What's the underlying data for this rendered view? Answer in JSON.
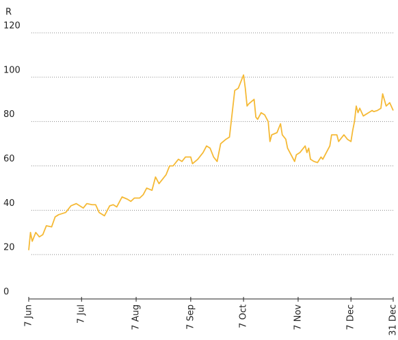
{
  "chart_data": {
    "type": "line",
    "ylabel": "R",
    "x": [
      "7 Jun",
      "8 Jun",
      "9 Jun",
      "11 Jun",
      "13 Jun",
      "15 Jun",
      "17 Jun",
      "20 Jun",
      "22 Jun",
      "24 Jun",
      "28 Jun",
      "30 Jun",
      "1 Jul",
      "4 Jul",
      "6 Jul",
      "8 Jul",
      "10 Jul",
      "13 Jul",
      "15 Jul",
      "17 Jul",
      "20 Jul",
      "23 Jul",
      "25 Jul",
      "27 Jul",
      "30 Jul",
      "2 Aug",
      "4 Aug",
      "6 Aug",
      "9 Aug",
      "11 Aug",
      "13 Aug",
      "16 Aug",
      "18 Aug",
      "20 Aug",
      "24 Aug",
      "26 Aug",
      "28 Aug",
      "29 Aug",
      "30 Aug",
      "31 Aug",
      "2 Sep",
      "4 Sep",
      "7 Sep",
      "8 Sep",
      "11 Sep",
      "14 Sep",
      "16 Sep",
      "18 Sep",
      "20 Sep",
      "22 Sep",
      "24 Sep",
      "27 Sep",
      "29 Sep",
      "1 Oct",
      "2 Oct",
      "4 Oct",
      "5 Oct",
      "7 Oct",
      "8 Oct",
      "9 Oct",
      "10 Oct",
      "13 Oct",
      "14 Oct",
      "15 Oct",
      "17 Oct",
      "19 Oct",
      "21 Oct",
      "22 Oct",
      "23 Oct",
      "26 Oct",
      "28 Oct",
      "29 Oct",
      "31 Oct",
      "1 Nov",
      "3 Nov",
      "5 Nov",
      "6 Nov",
      "8 Nov",
      "9 Nov",
      "11 Nov",
      "12 Nov",
      "13 Nov",
      "14 Nov",
      "16 Nov",
      "18 Nov",
      "20 Nov",
      "21 Nov",
      "23 Nov",
      "25 Nov",
      "26 Nov",
      "29 Nov",
      "30 Nov",
      "2 Dec",
      "3 Dec",
      "5 Dec",
      "7 Dec",
      "8 Dec",
      "9 Dec",
      "10 Dec",
      "11 Dec",
      "12 Dec",
      "14 Dec",
      "15 Dec",
      "17 Dec",
      "19 Dec",
      "20 Dec",
      "22 Dec",
      "24 Dec",
      "25 Dec",
      "27 Dec",
      "29 Dec",
      "31 Dec"
    ],
    "series": [
      {
        "color": "#f5b935",
        "values": [
          22,
          30,
          26,
          30,
          28,
          29,
          33,
          32.5,
          37,
          38,
          39,
          41,
          42,
          43,
          42,
          41,
          43,
          42.5,
          42.5,
          39,
          37.5,
          42,
          42.5,
          41.5,
          46,
          45,
          44,
          45.5,
          45.5,
          47,
          50,
          49,
          55,
          52,
          56,
          60,
          60,
          61,
          62,
          63,
          62,
          64,
          64,
          61,
          63,
          66,
          69,
          68,
          64,
          62,
          70,
          72,
          73,
          87,
          94,
          95,
          97,
          101,
          95,
          87,
          88,
          90,
          82,
          81,
          84,
          83,
          80,
          71,
          74,
          75,
          79,
          74,
          72,
          68,
          65,
          62,
          65,
          66,
          67,
          69,
          66,
          68,
          63,
          62,
          61.5,
          64,
          63,
          66,
          69,
          74,
          74,
          71,
          73,
          74,
          72,
          71,
          76,
          80,
          87,
          84,
          86,
          82.5,
          83,
          84,
          85,
          84.5,
          85,
          86,
          92.5,
          87,
          88.5,
          85
        ]
      }
    ],
    "xlim": [
      "7 Jun",
      "31 Dec"
    ],
    "xticks": [
      "7 Jun",
      "7 Jul",
      "7 Aug",
      "7 Sep",
      "7 Oct",
      "7 Nov",
      "7 Dec",
      "31 Dec"
    ],
    "ylim": [
      0,
      120
    ],
    "yticks": [
      0,
      20,
      40,
      60,
      80,
      100,
      120
    ],
    "grid": true
  }
}
